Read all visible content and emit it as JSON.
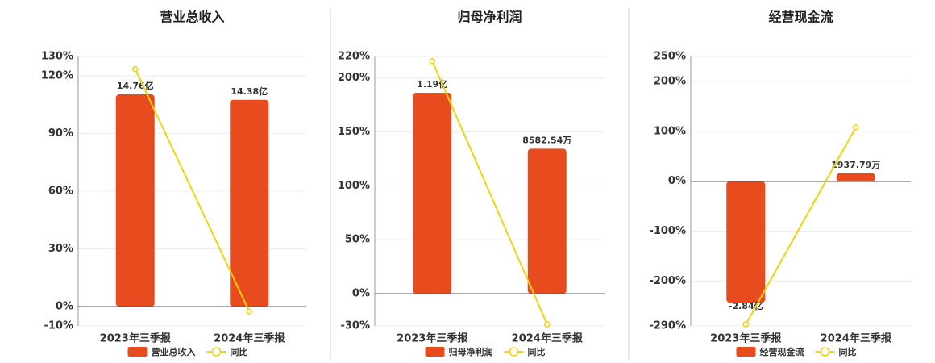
{
  "chart_data": [
    {
      "type": "bar_line",
      "title": "营业总收入",
      "categories": [
        "2023年三季报",
        "2024年三季报"
      ],
      "series": [
        {
          "name": "营业总收入",
          "type": "bar",
          "axis": "y2",
          "color": "#e84c1e",
          "values": [
            1476000000,
            1438000000
          ],
          "value_labels": [
            "14.76亿",
            "14.38亿"
          ]
        },
        {
          "name": "同比",
          "type": "line",
          "color": "#f2d20f",
          "values": [
            123.4,
            -2.5
          ]
        }
      ],
      "ylim": [
        -10,
        130
      ],
      "yticks": [
        {
          "value": -10,
          "label": "-10%"
        },
        {
          "value": 0,
          "label": "0%"
        },
        {
          "value": 30,
          "label": "30%"
        },
        {
          "value": 60,
          "label": "60%"
        },
        {
          "value": 90,
          "label": "90%"
        },
        {
          "value": 120,
          "label": "120%"
        },
        {
          "value": 130,
          "label": "130%"
        }
      ],
      "y2lim": [
        -135000000,
        1740000000
      ],
      "grid": true
    },
    {
      "type": "bar_line",
      "title": "归母净利润",
      "categories": [
        "2023年三季报",
        "2024年三季报"
      ],
      "series": [
        {
          "name": "归母净利润",
          "type": "bar",
          "axis": "y2",
          "color": "#e84c1e",
          "values": [
            119000000,
            85825400
          ],
          "value_labels": [
            "1.19亿",
            "8582.54万"
          ]
        },
        {
          "name": "同比",
          "type": "line",
          "color": "#f2d20f",
          "values": [
            215.7,
            -28.4
          ]
        }
      ],
      "ylim": [
        -30,
        220
      ],
      "yticks": [
        {
          "value": -30,
          "label": "-30%"
        },
        {
          "value": 0,
          "label": "0%"
        },
        {
          "value": 50,
          "label": "50%"
        },
        {
          "value": 100,
          "label": "100%"
        },
        {
          "value": 150,
          "label": "150%"
        },
        {
          "value": 200,
          "label": "200%"
        },
        {
          "value": 220,
          "label": "220%"
        }
      ],
      "y2lim": [
        -19100000,
        140500000
      ],
      "grid": true
    },
    {
      "type": "bar_line",
      "title": "经营现金流",
      "categories": [
        "2023年三季报",
        "2024年三季报"
      ],
      "series": [
        {
          "name": "经营现金流",
          "type": "bar",
          "axis": "y2",
          "color": "#e84c1e",
          "values": [
            -284000000,
            19377900
          ],
          "value_labels": [
            "-2.84亿",
            "1937.79万"
          ]
        },
        {
          "name": "同比",
          "type": "line",
          "color": "#f2d20f",
          "values": [
            -287,
            108
          ]
        }
      ],
      "ylim": [
        -290,
        250
      ],
      "yticks": [
        {
          "value": -290,
          "label": "-290%"
        },
        {
          "value": -200,
          "label": "-200%"
        },
        {
          "value": -100,
          "label": "-100%"
        },
        {
          "value": 0,
          "label": "0%"
        },
        {
          "value": 100,
          "label": "100%"
        },
        {
          "value": 200,
          "label": "200%"
        },
        {
          "value": 250,
          "label": "250%"
        }
      ],
      "y2lim": [
        -338900000,
        293500000
      ],
      "grid": true
    }
  ]
}
